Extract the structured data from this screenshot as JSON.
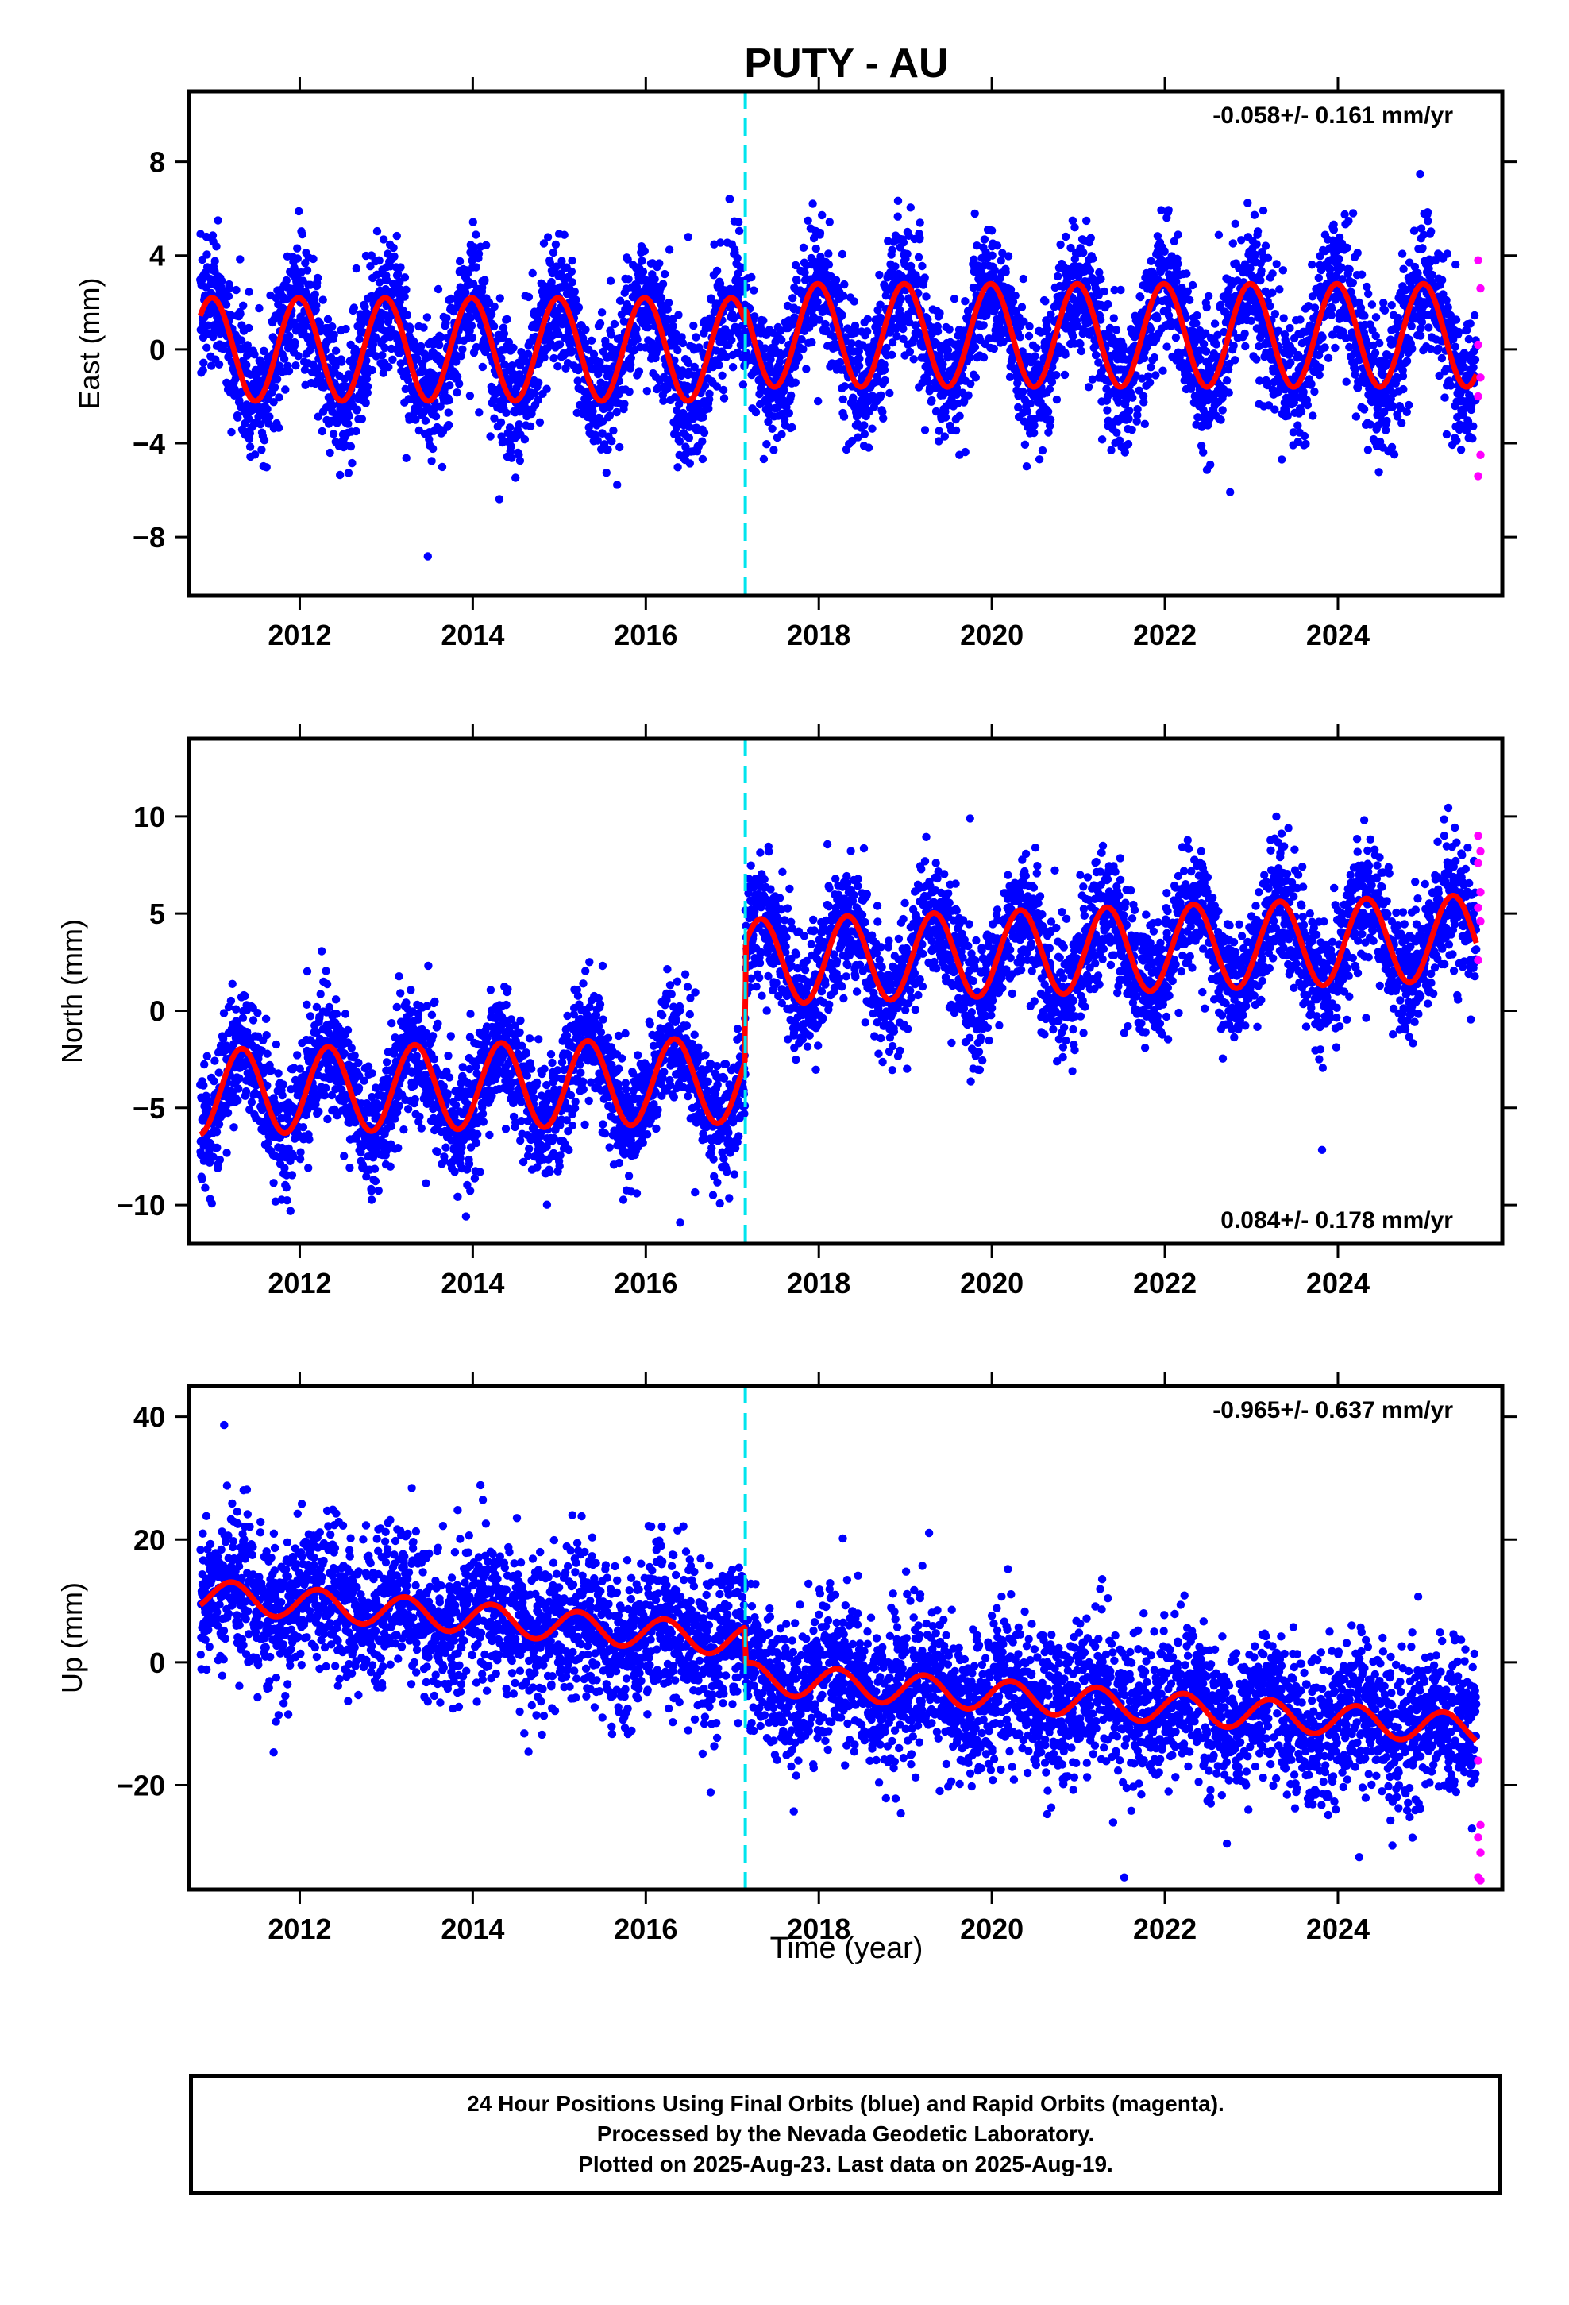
{
  "chart_data": {
    "type": "scatter",
    "title": "PUTY - AU",
    "xlabel": "Time (year)",
    "x_ticks": [
      "2012",
      "2014",
      "2016",
      "2018",
      "2020",
      "2022",
      "2024"
    ],
    "xlim": [
      2010.72,
      2025.9
    ],
    "equipment_change": 2017.15,
    "colors": {
      "final": "#0000ff",
      "rapid": "#ff00ff",
      "model": "#ff0000",
      "equipment": "#00e5ee"
    },
    "panels": [
      {
        "ylabel": "East (mm)",
        "ylim": [
          -10.5,
          11
        ],
        "yticks": [
          {
            "v": 8,
            "label": "8"
          },
          {
            "v": 4,
            "label": "4"
          },
          {
            "v": 0,
            "label": "0"
          },
          {
            "v": -4,
            "label": "−4"
          },
          {
            "v": -8,
            "label": "−8"
          }
        ],
        "rate": "-0.058+/- 0.161 mm/yr",
        "rate_position": "top-right",
        "model": {
          "offset_pre": 0,
          "trend_pre": 0,
          "offset_post": 0.6,
          "trend_post": 0,
          "amplitude": 2.2,
          "period": 1.0,
          "phase": 1.65,
          "noise": 1.4
        },
        "rapid_values": [
          3.8,
          2.6,
          0.2,
          -1.2,
          -2.0,
          -4.5,
          -5.4
        ]
      },
      {
        "ylabel": "North (mm)",
        "ylim": [
          -12,
          14
        ],
        "yticks": [
          {
            "v": 10,
            "label": "10"
          },
          {
            "v": 5,
            "label": "5"
          },
          {
            "v": 0,
            "label": "0"
          },
          {
            "v": -5,
            "label": "−5"
          },
          {
            "v": -10,
            "label": "−10"
          }
        ],
        "rate": "0.084+/- 0.178 mm/yr",
        "rate_position": "bottom-right",
        "model": {
          "offset_pre": -4.2,
          "trend_pre": 0.1,
          "offset_post": 2.5,
          "trend_post": 0.15,
          "amplitude": 2.2,
          "period": 1.0,
          "phase": -0.5,
          "noise": 1.6
        },
        "rapid_values": [
          9.0,
          8.2,
          7.6,
          6.1,
          5.3,
          4.6,
          2.6
        ]
      },
      {
        "ylabel": "Up (mm)",
        "ylim": [
          -37,
          45
        ],
        "yticks": [
          {
            "v": 40,
            "label": "40"
          },
          {
            "v": 20,
            "label": "20"
          },
          {
            "v": 0,
            "label": "0"
          },
          {
            "v": -20,
            "label": "−20"
          }
        ],
        "rate": "-0.965+/- 0.637 mm/yr",
        "rate_position": "top-right",
        "model": {
          "offset_pre": 11.0,
          "trend_pre": -1.2,
          "offset_post": -2.5,
          "trend_post": -1.0,
          "amplitude": 2.5,
          "period": 1.0,
          "phase": 0.2,
          "noise": 6.0
        },
        "rapid_values": [
          -16.0,
          -26.5,
          -28.5,
          -31.0,
          -35.0,
          -35.5
        ]
      }
    ]
  },
  "footer": {
    "line1": "24 Hour Positions Using Final Orbits (blue) and Rapid Orbits (magenta).",
    "line2": "Processed by the Nevada Geodetic Laboratory.",
    "line3": "Plotted on 2025-Aug-23. Last data on 2025-Aug-19."
  }
}
